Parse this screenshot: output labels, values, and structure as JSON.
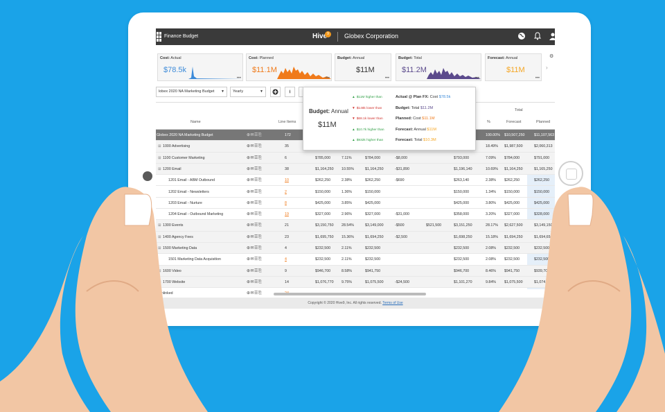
{
  "app": {
    "name": "Finance Budget",
    "brand": "Hive",
    "brand_badge": "9",
    "company": "Globex Corporation"
  },
  "kpis": [
    {
      "label_bold": "Cost:",
      "label": " Actual",
      "value": "$78.5k",
      "color": "#3d8bd9"
    },
    {
      "label_bold": "Cost:",
      "label": " Planned",
      "value": "$11.1M",
      "color": "#f07a1a"
    },
    {
      "label_bold": "Budget:",
      "label": " Annual",
      "value": "$11M",
      "color": "#333333"
    },
    {
      "label_bold": "Budget:",
      "label": " Total",
      "value": "$11.2M",
      "color": "#5b4a8c"
    },
    {
      "label_bold": "Forecast:",
      "label": " Annual",
      "value": "$11M",
      "color": "#f5a623"
    }
  ],
  "toolbar": {
    "budget_select": "lobex 2020 NA Marketing Budget",
    "period_select": "Yearly"
  },
  "headers": {
    "name": "Name",
    "line_items": "Line Items",
    "total": "Total",
    "pct": "%",
    "forecast": "Forecast",
    "planned": "Planned"
  },
  "rows": [
    {
      "name": "Globex 2020 NA Marketing Budget",
      "indent": 0,
      "type": "total",
      "line_items": "172",
      "c1": "",
      "c2": "",
      "c3": "",
      "c4": "",
      "c5": "",
      "c6": "",
      "pct": "100.00%",
      "forecast": "$10,507,250",
      "planned": "$11,107,563"
    },
    {
      "name": "1000 Advertising",
      "indent": 1,
      "type": "group",
      "line_items": "35",
      "c1": "",
      "c2": "",
      "c3": "",
      "c4": "",
      "c5": "",
      "c6": "",
      "pct": "18.49%",
      "forecast": "$1,987,500",
      "planned": "$2,060,313"
    },
    {
      "name": "1100 Customer Marketing",
      "indent": 1,
      "type": "group",
      "line_items": "6",
      "c1": "$785,000",
      "c2": "7.11%",
      "c3": "$784,000",
      "c4": "-$8,000",
      "c5": "",
      "c6": "$793,000",
      "pct": "7.09%",
      "forecast": "$784,000",
      "planned": "$791,000"
    },
    {
      "name": "1200 Email",
      "indent": 1,
      "type": "group",
      "line_items": "38",
      "c1": "$1,164,250",
      "c2": "10.55%",
      "c3": "$1,164,250",
      "c4": "-$31,890",
      "c5": "",
      "c6": "$1,196,140",
      "pct": "10.69%",
      "forecast": "$1,164,250",
      "planned": "$1,165,250"
    },
    {
      "name": "1201 Email - ABM Outbound",
      "indent": 2,
      "type": "item",
      "line_items": "10",
      "li_orange": true,
      "c1": "$262,250",
      "c2": "2.38%",
      "c3": "$262,250",
      "c4": "-$690",
      "c5": "",
      "c6": "$263,140",
      "pct": "2.38%",
      "forecast": "$262,250",
      "planned": "$262,250"
    },
    {
      "name": "1202 Email - Newsletters",
      "indent": 2,
      "type": "item",
      "line_items": "2",
      "li_orange": true,
      "c1": "$150,000",
      "c2": "1.36%",
      "c3": "$150,000",
      "c4": "",
      "c5": "",
      "c6": "$150,000",
      "pct": "1.34%",
      "forecast": "$150,000",
      "planned": "$150,000"
    },
    {
      "name": "1203 Email - Nurture",
      "indent": 2,
      "type": "item",
      "line_items": "8",
      "li_orange": true,
      "c1": "$425,000",
      "c2": "3.85%",
      "c3": "$425,000",
      "c4": "",
      "c5": "",
      "c6": "$425,000",
      "pct": "3.80%",
      "forecast": "$425,000",
      "planned": "$425,000"
    },
    {
      "name": "1204 Email - Outbound Marketing",
      "indent": 2,
      "type": "item",
      "line_items": "19",
      "li_orange": true,
      "c1": "$327,000",
      "c2": "2.96%",
      "c3": "$327,000",
      "c4": "-$31,000",
      "c5": "",
      "c6": "$358,000",
      "pct": "3.20%",
      "forecast": "$327,000",
      "planned": "$328,000"
    },
    {
      "name": "1300 Events",
      "indent": 1,
      "type": "group",
      "line_items": "21",
      "c1": "$3,150,750",
      "c2": "28.54%",
      "c3": "$3,149,000",
      "c4": "-$500",
      "c5": "$521,500",
      "c6": "$3,151,250",
      "pct": "28.17%",
      "forecast": "$2,627,500",
      "planned": "$3,149,150"
    },
    {
      "name": "1400 Agency Fees",
      "indent": 1,
      "type": "group",
      "line_items": "23",
      "c1": "$1,695,750",
      "c2": "15.36%",
      "c3": "$1,694,250",
      "c4": "-$2,500",
      "c5": "",
      "c6": "$1,698,250",
      "pct": "15.18%",
      "forecast": "$1,694,250",
      "planned": "$1,694,650"
    },
    {
      "name": "1500 Marketing Data",
      "indent": 1,
      "type": "group",
      "line_items": "4",
      "c1": "$232,500",
      "c2": "2.11%",
      "c3": "$232,500",
      "c4": "",
      "c5": "",
      "c6": "$232,500",
      "pct": "2.08%",
      "forecast": "$232,500",
      "planned": "$232,500"
    },
    {
      "name": "1501 Marketing Data Acquisition",
      "indent": 2,
      "type": "item",
      "line_items": "4",
      "li_orange": true,
      "c1": "$232,500",
      "c2": "2.11%",
      "c3": "$232,500",
      "c4": "",
      "c5": "",
      "c6": "$232,500",
      "pct": "2.08%",
      "forecast": "$232,500",
      "planned": "$232,500"
    },
    {
      "name": "1600 Video",
      "indent": 1,
      "type": "group",
      "line_items": "9",
      "c1": "$946,700",
      "c2": "8.58%",
      "c3": "$941,750",
      "c4": "",
      "c5": "",
      "c6": "$946,700",
      "pct": "8.46%",
      "forecast": "$941,750",
      "planned": "$939,700"
    },
    {
      "name": "1700 Website",
      "indent": 1,
      "type": "group",
      "line_items": "14",
      "c1": "$1,076,770",
      "c2": "9.75%",
      "c3": "$1,075,500",
      "c4": "-$24,500",
      "c5": "",
      "c6": "$1,101,270",
      "pct": "9.84%",
      "forecast": "$1,075,500",
      "planned": "$1,074,800"
    },
    {
      "name": "Unlinked",
      "indent": 1,
      "type": "item",
      "line_items": "24",
      "li_orange": true,
      "c1": "",
      "c2": "",
      "c3": "",
      "c4": "",
      "c5": "",
      "c6": "",
      "pct": "",
      "forecast": "",
      "planned": ""
    }
  ],
  "tooltip": {
    "title_bold": "Budget:",
    "title": " Annual",
    "value": "$11M",
    "deltas": [
      {
        "text": "$11M higher than",
        "color": "#2e9e44",
        "arrow": "▲"
      },
      {
        "text": "$148k lower than",
        "color": "#d0312d",
        "arrow": "▼"
      },
      {
        "text": "$68.1k lower than",
        "color": "#d0312d",
        "arrow": "▼"
      },
      {
        "text": "$10.7k higher than",
        "color": "#2e9e44",
        "arrow": "▲"
      },
      {
        "text": "$932k higher than",
        "color": "#2e9e44",
        "arrow": "▲"
      }
    ],
    "refs": [
      {
        "bold": "Actual @ Plan FX:",
        "label": " Cost ",
        "value": "$78.5k",
        "color": "#3d8bd9"
      },
      {
        "bold": "Budget:",
        "label": " Total ",
        "value": "$11.2M",
        "color": "#5b4a8c"
      },
      {
        "bold": "Planned:",
        "label": " Cost ",
        "value": "$11.1M",
        "color": "#f07a1a"
      },
      {
        "bold": "Forecast:",
        "label": " Annual ",
        "value": "$11M",
        "color": "#f5a623"
      },
      {
        "bold": "Forecast:",
        "label": " Total ",
        "value": "$10.3M",
        "color": "#f5a623"
      }
    ]
  },
  "footer": {
    "text": "Copyright © 2020 Hive9, Inc. All rights reserved.",
    "link": "Terms of Use"
  }
}
